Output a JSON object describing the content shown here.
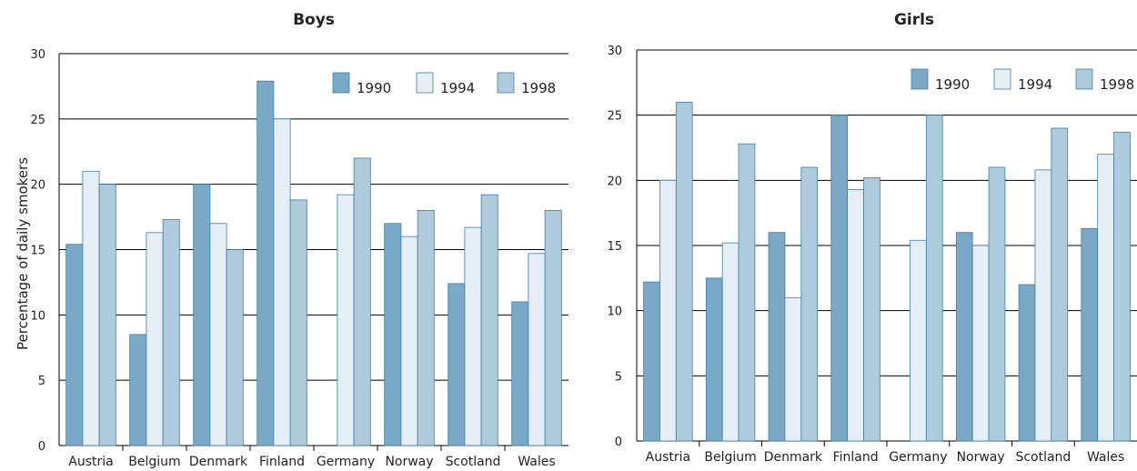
{
  "y_axis_label": "Percentage of daily smokers",
  "colors": {
    "1990": "#79a9c7",
    "1994": "#e6eef5",
    "1998": "#aecbdd",
    "border": "#3f7ea3",
    "grid": "#000000"
  },
  "chart_data": [
    {
      "type": "bar",
      "title": "Boys",
      "ylabel": "Percentage of daily smokers",
      "xlabel": "",
      "ylim": [
        0,
        30
      ],
      "yticks": [
        0,
        5,
        10,
        15,
        20,
        25,
        30
      ],
      "grid": true,
      "legend_position": "top-right",
      "categories": [
        "Austria",
        "Belgium",
        "Denmark",
        "Finland",
        "Germany",
        "Norway",
        "Scotland",
        "Wales"
      ],
      "series": [
        {
          "name": "1990",
          "values": [
            15.4,
            8.5,
            20,
            27.9,
            null,
            17,
            12.4,
            11
          ]
        },
        {
          "name": "1994",
          "values": [
            21,
            16.3,
            17,
            25,
            19.2,
            16,
            16.7,
            14.7
          ]
        },
        {
          "name": "1998",
          "values": [
            20,
            17.3,
            15,
            18.8,
            22,
            18,
            19.2,
            18
          ]
        }
      ]
    },
    {
      "type": "bar",
      "title": "Girls",
      "xlabel": "",
      "ylim": [
        0,
        30
      ],
      "yticks": [
        0,
        5,
        10,
        15,
        20,
        25,
        30
      ],
      "grid": true,
      "legend_position": "top-right",
      "categories": [
        "Austria",
        "Belgium",
        "Denmark",
        "Finland",
        "Germany",
        "Norway",
        "Scotland",
        "Wales"
      ],
      "series": [
        {
          "name": "1990",
          "values": [
            12.2,
            12.5,
            16,
            25,
            null,
            16,
            12,
            16.3
          ]
        },
        {
          "name": "1994",
          "values": [
            20,
            15.2,
            11,
            19.3,
            15.4,
            15,
            20.8,
            22
          ]
        },
        {
          "name": "1998",
          "values": [
            26,
            22.8,
            21,
            20.2,
            25,
            21,
            24,
            23.7
          ]
        }
      ]
    }
  ]
}
